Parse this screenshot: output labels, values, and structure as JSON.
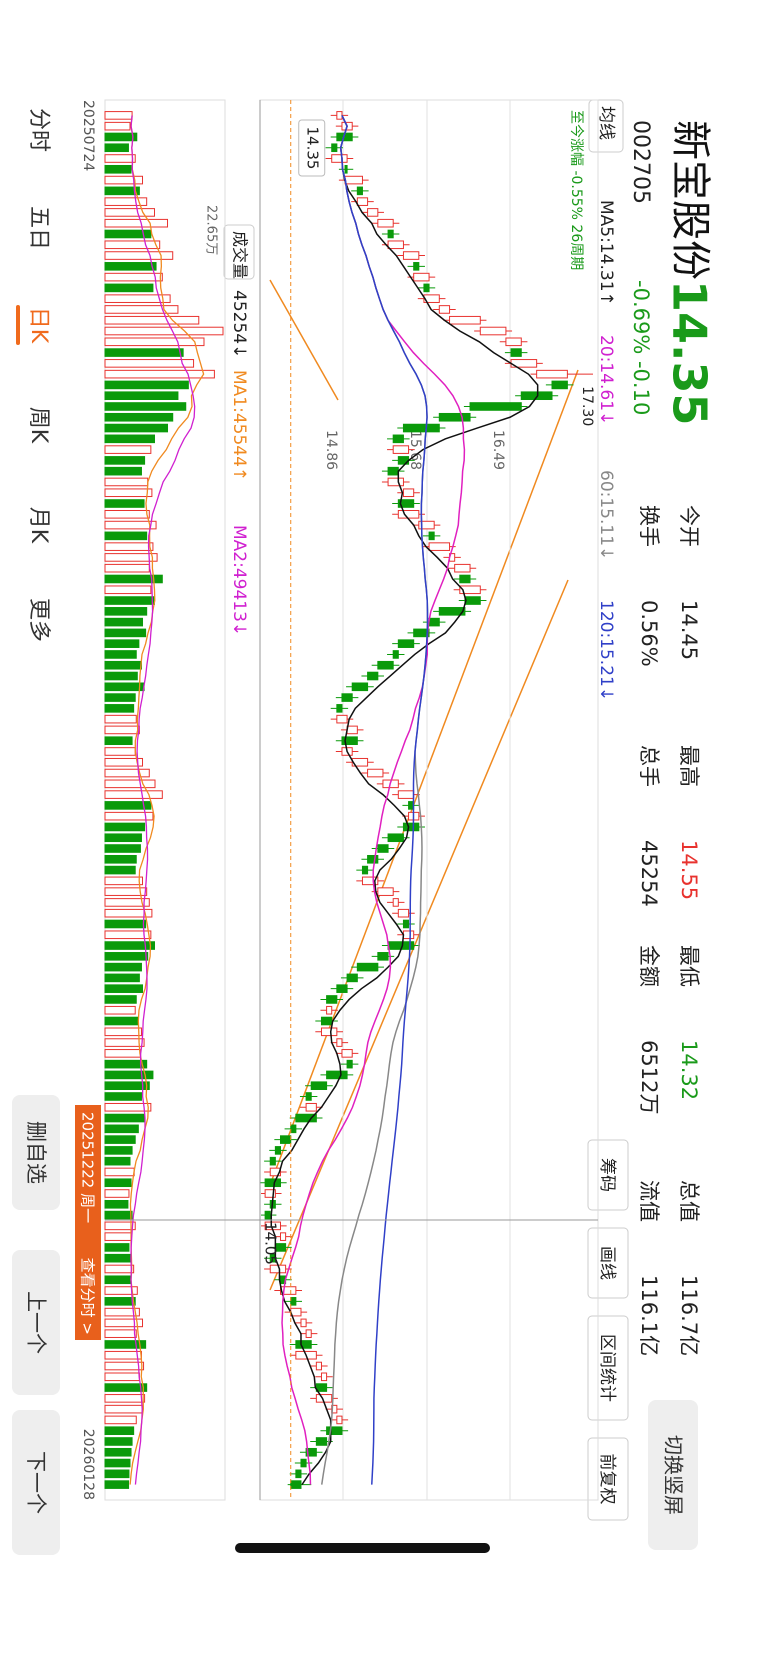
{
  "header": {
    "name": "新宝股份",
    "code": "002705",
    "price": "14.35",
    "change": "-0.69% -0.10",
    "switch": "切换竖屏"
  },
  "stats": [
    {
      "label": "今开",
      "value": "14.45"
    },
    {
      "label": "换手",
      "value": "0.56%"
    },
    {
      "label": "最高",
      "value": "14.55",
      "color": "#e8322e"
    },
    {
      "label": "总手",
      "value": "45254"
    },
    {
      "label": "最低",
      "value": "14.32",
      "color": "#1a9a1a"
    },
    {
      "label": "金额",
      "value": "6512万"
    },
    {
      "label": "总值",
      "value": "116.7亿"
    },
    {
      "label": "流值",
      "value": "116.1亿"
    }
  ],
  "toolbar": {
    "ma_select": "均线",
    "ma": [
      "MA5:14.31↑",
      "20:14.61↓",
      "60:15.11↓",
      "120:15.21↓"
    ],
    "buttons": [
      "筹码",
      "画线",
      "区间统计",
      "前复权"
    ]
  },
  "chart_data": {
    "type": "candlestick",
    "period_change": "至今涨幅 -0.55% 26周期",
    "ylim": [
      14.05,
      17.3
    ],
    "yticks": [
      14.86,
      15.68,
      16.49
    ],
    "max_label": "17.30",
    "current_price": 14.35,
    "up_color": "#e8322e",
    "down_color": "#0a9a0a",
    "candles": [
      [
        14.8,
        14.91,
        14.74,
        14.85
      ],
      [
        14.85,
        15.01,
        14.79,
        14.95
      ],
      [
        14.95,
        15.01,
        14.74,
        14.8
      ],
      [
        14.8,
        14.86,
        14.69,
        14.75
      ],
      [
        14.75,
        14.96,
        14.69,
        14.9
      ],
      [
        14.9,
        14.96,
        14.82,
        14.88
      ],
      [
        14.88,
        15.11,
        14.82,
        15.05
      ],
      [
        15.05,
        15.11,
        14.94,
        15.0
      ],
      [
        15.0,
        15.16,
        14.94,
        15.1
      ],
      [
        15.1,
        15.26,
        15.04,
        15.2
      ],
      [
        15.2,
        15.41,
        15.14,
        15.35
      ],
      [
        15.35,
        15.41,
        15.24,
        15.3
      ],
      [
        15.3,
        15.51,
        15.24,
        15.45
      ],
      [
        15.45,
        15.66,
        15.39,
        15.6
      ],
      [
        15.6,
        15.66,
        15.49,
        15.55
      ],
      [
        15.55,
        15.76,
        15.49,
        15.7
      ],
      [
        15.7,
        15.76,
        15.59,
        15.65
      ],
      [
        15.65,
        15.86,
        15.59,
        15.8
      ],
      [
        15.8,
        15.96,
        15.74,
        15.9
      ],
      [
        15.9,
        16.26,
        15.84,
        16.2
      ],
      [
        16.2,
        16.51,
        16.14,
        16.45
      ],
      [
        16.45,
        16.66,
        16.39,
        16.6
      ],
      [
        16.6,
        16.66,
        16.44,
        16.5
      ],
      [
        16.5,
        16.81,
        16.44,
        16.75
      ],
      [
        16.75,
        17.3,
        16.69,
        17.05
      ],
      [
        17.05,
        17.11,
        16.84,
        16.9
      ],
      [
        16.9,
        16.96,
        16.54,
        16.6
      ],
      [
        16.6,
        16.66,
        16.04,
        16.1
      ],
      [
        16.1,
        16.16,
        15.74,
        15.8
      ],
      [
        15.8,
        15.86,
        15.39,
        15.45
      ],
      [
        15.45,
        15.51,
        15.29,
        15.35
      ],
      [
        15.35,
        15.56,
        15.29,
        15.5
      ],
      [
        15.5,
        15.56,
        15.34,
        15.4
      ],
      [
        15.4,
        15.46,
        15.24,
        15.3
      ],
      [
        15.3,
        15.51,
        15.24,
        15.45
      ],
      [
        15.45,
        15.61,
        15.39,
        15.55
      ],
      [
        15.55,
        15.61,
        15.34,
        15.4
      ],
      [
        15.4,
        15.66,
        15.34,
        15.6
      ],
      [
        15.6,
        15.81,
        15.54,
        15.75
      ],
      [
        15.75,
        15.81,
        15.64,
        15.7
      ],
      [
        15.7,
        15.96,
        15.64,
        15.9
      ],
      [
        15.9,
        16.01,
        15.84,
        15.95
      ],
      [
        15.95,
        16.16,
        15.89,
        16.1
      ],
      [
        16.1,
        16.16,
        15.94,
        16.0
      ],
      [
        16.0,
        16.26,
        15.94,
        16.2
      ],
      [
        16.2,
        16.26,
        15.99,
        16.05
      ],
      [
        16.05,
        16.11,
        15.74,
        15.8
      ],
      [
        15.8,
        15.86,
        15.64,
        15.7
      ],
      [
        15.7,
        15.76,
        15.49,
        15.55
      ],
      [
        15.55,
        15.61,
        15.34,
        15.4
      ],
      [
        15.4,
        15.46,
        15.29,
        15.35
      ],
      [
        15.35,
        15.41,
        15.14,
        15.2
      ],
      [
        15.2,
        15.26,
        15.04,
        15.1
      ],
      [
        15.1,
        15.16,
        14.89,
        14.95
      ],
      [
        14.95,
        15.01,
        14.79,
        14.85
      ],
      [
        14.85,
        14.91,
        14.74,
        14.8
      ],
      [
        14.8,
        14.96,
        14.74,
        14.9
      ],
      [
        14.9,
        15.06,
        14.84,
        15.0
      ],
      [
        15.0,
        15.06,
        14.79,
        14.85
      ],
      [
        14.85,
        15.01,
        14.79,
        14.95
      ],
      [
        14.95,
        15.16,
        14.89,
        15.1
      ],
      [
        15.1,
        15.31,
        15.04,
        15.25
      ],
      [
        15.25,
        15.46,
        15.19,
        15.4
      ],
      [
        15.4,
        15.61,
        15.34,
        15.55
      ],
      [
        15.55,
        15.61,
        15.44,
        15.5
      ],
      [
        15.5,
        15.66,
        15.44,
        15.6
      ],
      [
        15.6,
        15.66,
        15.39,
        15.45
      ],
      [
        15.45,
        15.51,
        15.24,
        15.3
      ],
      [
        15.3,
        15.36,
        15.14,
        15.2
      ],
      [
        15.2,
        15.26,
        15.04,
        15.1
      ],
      [
        15.1,
        15.16,
        14.99,
        15.05
      ],
      [
        15.05,
        15.26,
        14.99,
        15.2
      ],
      [
        15.2,
        15.41,
        15.14,
        15.35
      ],
      [
        15.35,
        15.46,
        15.29,
        15.4
      ],
      [
        15.4,
        15.56,
        15.34,
        15.5
      ],
      [
        15.5,
        15.56,
        15.39,
        15.45
      ],
      [
        15.45,
        15.61,
        15.39,
        15.55
      ],
      [
        15.55,
        15.61,
        15.24,
        15.3
      ],
      [
        15.3,
        15.36,
        15.14,
        15.2
      ],
      [
        15.2,
        15.26,
        14.94,
        15.0
      ],
      [
        15.0,
        15.06,
        14.84,
        14.9
      ],
      [
        14.9,
        14.96,
        14.74,
        14.8
      ],
      [
        14.8,
        14.86,
        14.64,
        14.7
      ],
      [
        14.7,
        14.81,
        14.64,
        14.75
      ],
      [
        14.75,
        14.81,
        14.59,
        14.65
      ],
      [
        14.65,
        14.86,
        14.59,
        14.8
      ],
      [
        14.8,
        14.91,
        14.74,
        14.85
      ],
      [
        14.85,
        15.01,
        14.79,
        14.95
      ],
      [
        14.95,
        15.01,
        14.84,
        14.9
      ],
      [
        14.9,
        14.96,
        14.64,
        14.7
      ],
      [
        14.7,
        14.76,
        14.49,
        14.55
      ],
      [
        14.55,
        14.61,
        14.44,
        14.5
      ],
      [
        14.5,
        14.66,
        14.44,
        14.6
      ],
      [
        14.6,
        14.66,
        14.34,
        14.4
      ],
      [
        14.4,
        14.46,
        14.29,
        14.35
      ],
      [
        14.35,
        14.41,
        14.19,
        14.25
      ],
      [
        14.25,
        14.31,
        14.14,
        14.2
      ],
      [
        14.2,
        14.26,
        14.09,
        14.15
      ],
      [
        14.15,
        14.31,
        14.09,
        14.25
      ],
      [
        14.25,
        14.31,
        14.05,
        14.1
      ],
      [
        14.1,
        14.26,
        14.06,
        14.2
      ],
      [
        14.2,
        14.26,
        14.09,
        14.15
      ],
      [
        14.15,
        14.21,
        14.06,
        14.1
      ],
      [
        14.1,
        14.31,
        14.06,
        14.25
      ],
      [
        14.25,
        14.36,
        14.19,
        14.3
      ],
      [
        14.3,
        14.36,
        14.14,
        14.2
      ],
      [
        14.2,
        14.26,
        14.09,
        14.15
      ],
      [
        14.15,
        14.36,
        14.09,
        14.3
      ],
      [
        14.3,
        14.36,
        14.19,
        14.25
      ],
      [
        14.25,
        14.46,
        14.19,
        14.4
      ],
      [
        14.4,
        14.46,
        14.29,
        14.35
      ],
      [
        14.35,
        14.51,
        14.29,
        14.45
      ],
      [
        14.45,
        14.56,
        14.39,
        14.5
      ],
      [
        14.5,
        14.61,
        14.44,
        14.55
      ],
      [
        14.55,
        14.61,
        14.34,
        14.4
      ],
      [
        14.4,
        14.66,
        14.34,
        14.6
      ],
      [
        14.6,
        14.71,
        14.54,
        14.65
      ],
      [
        14.65,
        14.76,
        14.59,
        14.7
      ],
      [
        14.7,
        14.76,
        14.54,
        14.6
      ],
      [
        14.6,
        14.81,
        14.54,
        14.75
      ],
      [
        14.75,
        14.86,
        14.69,
        14.8
      ],
      [
        14.8,
        14.91,
        14.74,
        14.85
      ],
      [
        14.85,
        14.91,
        14.64,
        14.7
      ],
      [
        14.7,
        14.76,
        14.54,
        14.6
      ],
      [
        14.6,
        14.66,
        14.44,
        14.5
      ],
      [
        14.5,
        14.56,
        14.39,
        14.45
      ],
      [
        14.45,
        14.51,
        14.34,
        14.4
      ],
      [
        14.45,
        14.55,
        14.32,
        14.35
      ]
    ],
    "crosshair": {
      "date": "20251222 周一",
      "action": "查看分时 >",
      "price": 14.05
    },
    "dates": [
      "20250724",
      "20260128"
    ],
    "volume": {
      "title": "成交量",
      "latest": "45254↓",
      "ma1": "MA1:45544↑",
      "ma2": "MA2:49413↓",
      "ylim": [
        0,
        226500
      ],
      "yticks": [
        0,
        {
          "value": 226500,
          "label": "22.65万"
        }
      ],
      "values": [
        52000,
        48000,
        61000,
        45000,
        58000,
        50000,
        72000,
        66000,
        80000,
        95000,
        120000,
        88000,
        105000,
        130000,
        98000,
        110000,
        92000,
        125000,
        140000,
        180000,
        226500,
        190000,
        150000,
        170000,
        210000,
        160000,
        140000,
        155000,
        130000,
        120000,
        95000,
        88000,
        76000,
        70000,
        82000,
        90000,
        75000,
        85000,
        98000,
        80000,
        92000,
        100000,
        85000,
        110000,
        88000,
        95000,
        80000,
        72000,
        78000,
        65000,
        60000,
        70000,
        62000,
        75000,
        58000,
        55000,
        60000,
        66000,
        52000,
        58000,
        72000,
        85000,
        96000,
        110000,
        88000,
        92000,
        76000,
        70000,
        68000,
        60000,
        58000,
        72000,
        80000,
        85000,
        90000,
        78000,
        88000,
        95000,
        82000,
        70000,
        66000,
        72000,
        60000,
        58000,
        64000,
        70000,
        75000,
        68000,
        80000,
        92000,
        85000,
        70000,
        88000,
        76000,
        64000,
        58000,
        52000,
        48000,
        56000,
        50000,
        46000,
        44000,
        52000,
        58000,
        50000,
        46000,
        48000,
        55000,
        50000,
        62000,
        58000,
        66000,
        72000,
        60000,
        78000,
        70000,
        74000,
        66000,
        80000,
        76000,
        72000,
        60000,
        55000,
        52000,
        50000,
        48000,
        46000,
        45254
      ]
    }
  },
  "tabs": [
    "分时",
    "五日",
    "日K",
    "周K",
    "月K",
    "更多"
  ],
  "active_tab": 2,
  "actions": [
    "删自选",
    "上一个",
    "下一个"
  ]
}
